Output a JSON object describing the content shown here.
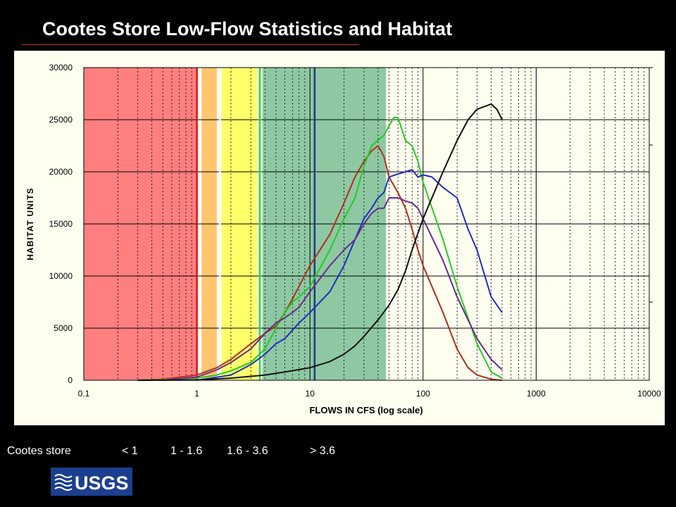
{
  "slide": {
    "title": "Cootes Store Low-Flow Statistics and Habitat"
  },
  "legend_row": {
    "site": "Cootes store",
    "ranges": [
      "< 1",
      "1 - 1.6",
      "1.6 - 3.6",
      "> 3.6"
    ]
  },
  "logo": {
    "text": "USGS",
    "color": "#ffffff",
    "background": "#1b3f8f"
  },
  "chart_data": {
    "type": "line",
    "title": "",
    "xlabel": "FLOWS IN CFS  (log scale)",
    "ylabel": "HABITAT UNITS",
    "x_scale": "log",
    "xlim": [
      0.1,
      10000
    ],
    "ylim": [
      0,
      30000
    ],
    "x_ticks": [
      0.1,
      1,
      10,
      100,
      1000,
      10000
    ],
    "x_tick_labels": [
      "0.1",
      "1",
      "10",
      "100",
      "1000",
      "10000"
    ],
    "y_ticks": [
      0,
      5000,
      10000,
      15000,
      20000,
      25000,
      30000
    ],
    "y_tick_labels": [
      "0",
      "5000",
      "10000",
      "15000",
      "20000",
      "25000",
      "30000"
    ],
    "grid": true,
    "shaded_bands": [
      {
        "x0": 0.1,
        "x1": 1.0,
        "color": "#ff7f7f"
      },
      {
        "x0": 1.1,
        "x1": 1.5,
        "color": "#ffc56f"
      },
      {
        "x0": 1.65,
        "x1": 3.4,
        "color": "#ffff6a"
      },
      {
        "x0": 3.8,
        "x1": 47,
        "color": "#8ec8a3"
      }
    ],
    "vertical_lines": [
      {
        "x": 1.0,
        "color": "#dd1111"
      },
      {
        "x": 1.6,
        "color": "#ffffff"
      },
      {
        "x": 3.6,
        "color": "#22dd22"
      },
      {
        "x": 11,
        "color": "#1f3a80"
      }
    ],
    "series": [
      {
        "color": "#b0301a",
        "points": [
          [
            0.3,
            0
          ],
          [
            0.5,
            100
          ],
          [
            1,
            500
          ],
          [
            1.5,
            1200
          ],
          [
            2,
            2000
          ],
          [
            3,
            3500
          ],
          [
            4,
            4500
          ],
          [
            5,
            5200
          ],
          [
            6,
            6500
          ],
          [
            7,
            7800
          ],
          [
            8,
            9000
          ],
          [
            10,
            11000
          ],
          [
            15,
            14000
          ],
          [
            20,
            17000
          ],
          [
            25,
            19500
          ],
          [
            30,
            21000
          ],
          [
            35,
            22000
          ],
          [
            40,
            22500
          ],
          [
            45,
            21500
          ],
          [
            50,
            19500
          ],
          [
            60,
            18000
          ],
          [
            70,
            16500
          ],
          [
            80,
            14500
          ],
          [
            90,
            12500
          ],
          [
            100,
            11000
          ],
          [
            150,
            6500
          ],
          [
            200,
            3000
          ],
          [
            250,
            1200
          ],
          [
            300,
            500
          ],
          [
            400,
            100
          ],
          [
            500,
            0
          ]
        ]
      },
      {
        "color": "#22cc22",
        "points": [
          [
            0.3,
            0
          ],
          [
            0.5,
            50
          ],
          [
            1,
            200
          ],
          [
            1.5,
            500
          ],
          [
            2,
            900
          ],
          [
            3,
            1700
          ],
          [
            4,
            3000
          ],
          [
            5,
            5000
          ],
          [
            6,
            6500
          ],
          [
            7,
            7500
          ],
          [
            8,
            8000
          ],
          [
            10,
            9000
          ],
          [
            15,
            12500
          ],
          [
            20,
            15500
          ],
          [
            25,
            17500
          ],
          [
            30,
            20500
          ],
          [
            35,
            22500
          ],
          [
            45,
            23500
          ],
          [
            55,
            25200
          ],
          [
            60,
            25200
          ],
          [
            70,
            23000
          ],
          [
            80,
            22500
          ],
          [
            90,
            21000
          ],
          [
            100,
            19000
          ],
          [
            150,
            13500
          ],
          [
            200,
            9000
          ],
          [
            300,
            3500
          ],
          [
            400,
            800
          ],
          [
            500,
            200
          ]
        ]
      },
      {
        "color": "#1f2fbf",
        "points": [
          [
            1,
            0
          ],
          [
            2,
            500
          ],
          [
            3,
            1500
          ],
          [
            4,
            2500
          ],
          [
            5,
            3500
          ],
          [
            6,
            4000
          ],
          [
            8,
            5500
          ],
          [
            10,
            6500
          ],
          [
            15,
            8500
          ],
          [
            20,
            11000
          ],
          [
            25,
            13500
          ],
          [
            30,
            15500
          ],
          [
            35,
            16500
          ],
          [
            40,
            17500
          ],
          [
            45,
            18000
          ],
          [
            50,
            19500
          ],
          [
            60,
            19800
          ],
          [
            70,
            20000
          ],
          [
            80,
            20200
          ],
          [
            90,
            19500
          ],
          [
            100,
            19700
          ],
          [
            120,
            19500
          ],
          [
            150,
            18500
          ],
          [
            200,
            17500
          ],
          [
            250,
            14500
          ],
          [
            300,
            12500
          ],
          [
            400,
            8000
          ],
          [
            500,
            6500
          ]
        ]
      },
      {
        "color": "#6a2a8c",
        "points": [
          [
            0.5,
            0
          ],
          [
            1,
            300
          ],
          [
            1.5,
            1000
          ],
          [
            2,
            1700
          ],
          [
            3,
            3000
          ],
          [
            4,
            4500
          ],
          [
            5,
            5500
          ],
          [
            6,
            6000
          ],
          [
            7,
            6500
          ],
          [
            8,
            7000
          ],
          [
            10,
            8500
          ],
          [
            15,
            11000
          ],
          [
            20,
            12500
          ],
          [
            25,
            13500
          ],
          [
            30,
            15000
          ],
          [
            35,
            16000
          ],
          [
            40,
            16500
          ],
          [
            45,
            16500
          ],
          [
            50,
            17500
          ],
          [
            60,
            17500
          ],
          [
            70,
            17200
          ],
          [
            80,
            17000
          ],
          [
            90,
            16500
          ],
          [
            100,
            15500
          ],
          [
            150,
            11500
          ],
          [
            200,
            8000
          ],
          [
            300,
            4000
          ],
          [
            400,
            2000
          ],
          [
            500,
            1000
          ]
        ]
      },
      {
        "color": "#111111",
        "points": [
          [
            0.3,
            0
          ],
          [
            1,
            30
          ],
          [
            2,
            200
          ],
          [
            4,
            500
          ],
          [
            6,
            800
          ],
          [
            10,
            1200
          ],
          [
            15,
            1800
          ],
          [
            20,
            2500
          ],
          [
            25,
            3300
          ],
          [
            30,
            4200
          ],
          [
            40,
            5800
          ],
          [
            50,
            7200
          ],
          [
            60,
            8700
          ],
          [
            70,
            10500
          ],
          [
            80,
            12500
          ],
          [
            100,
            15500
          ],
          [
            150,
            20000
          ],
          [
            200,
            23000
          ],
          [
            250,
            25000
          ],
          [
            300,
            26000
          ],
          [
            400,
            26500
          ],
          [
            450,
            26000
          ],
          [
            500,
            25000
          ]
        ]
      }
    ]
  }
}
